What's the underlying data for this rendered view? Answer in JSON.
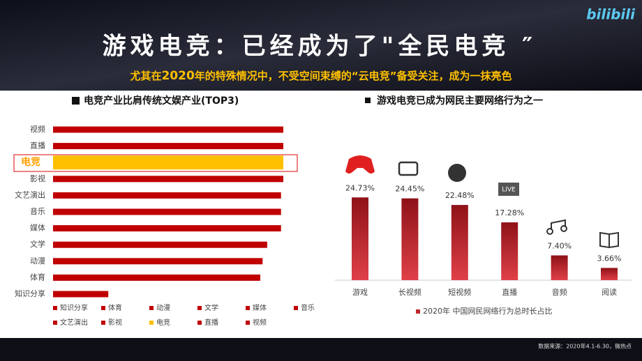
{
  "header": {
    "title": "游戏电竞：已经成为了\"全民电竞 ″",
    "subtitle_parts": [
      "尤其在",
      "2020",
      "年的特殊情况中，不受空间束缚的“云电竞”备受关注，成为一抹亮色"
    ],
    "logo": "bilibili"
  },
  "chart_data": [
    {
      "type": "hbar",
      "title": "电竞产业比肩传统文娱产业(TOP3)",
      "categories": [
        "视频",
        "直播",
        "电竞",
        "影视",
        "文艺演出",
        "音乐",
        "媒体",
        "文学",
        "动漫",
        "体育",
        "知识分享"
      ],
      "values": [
        100,
        100,
        100,
        100,
        99,
        99,
        99,
        93,
        91,
        90,
        24
      ],
      "colors": [
        "#c00000",
        "#c00000",
        "#ffc000",
        "#c00000",
        "#c00000",
        "#c00000",
        "#c00000",
        "#c00000",
        "#c00000",
        "#c00000",
        "#c00000"
      ],
      "xlim": [
        0,
        100
      ],
      "legend": "bottom"
    },
    {
      "type": "bar",
      "title": "游戏电竞已成为网民主要网络行为之一",
      "categories": [
        "游戏",
        "长视频",
        "短视频",
        "直播",
        "音频",
        "阅读"
      ],
      "values": [
        24.73,
        24.45,
        22.48,
        17.28,
        7.4,
        3.66
      ],
      "value_labels": [
        "24.73%",
        "24.45%",
        "22.48%",
        "17.28%",
        "7.40%",
        "3.66%"
      ],
      "series_name": "2020年 中国网民网络行为总时长占比",
      "color": "#c0282e",
      "ylim": [
        0,
        30
      ],
      "annotations": [
        "LIVE"
      ]
    }
  ],
  "footer": {
    "source": "数据来源：2020年4.1-6.30，微热点"
  }
}
